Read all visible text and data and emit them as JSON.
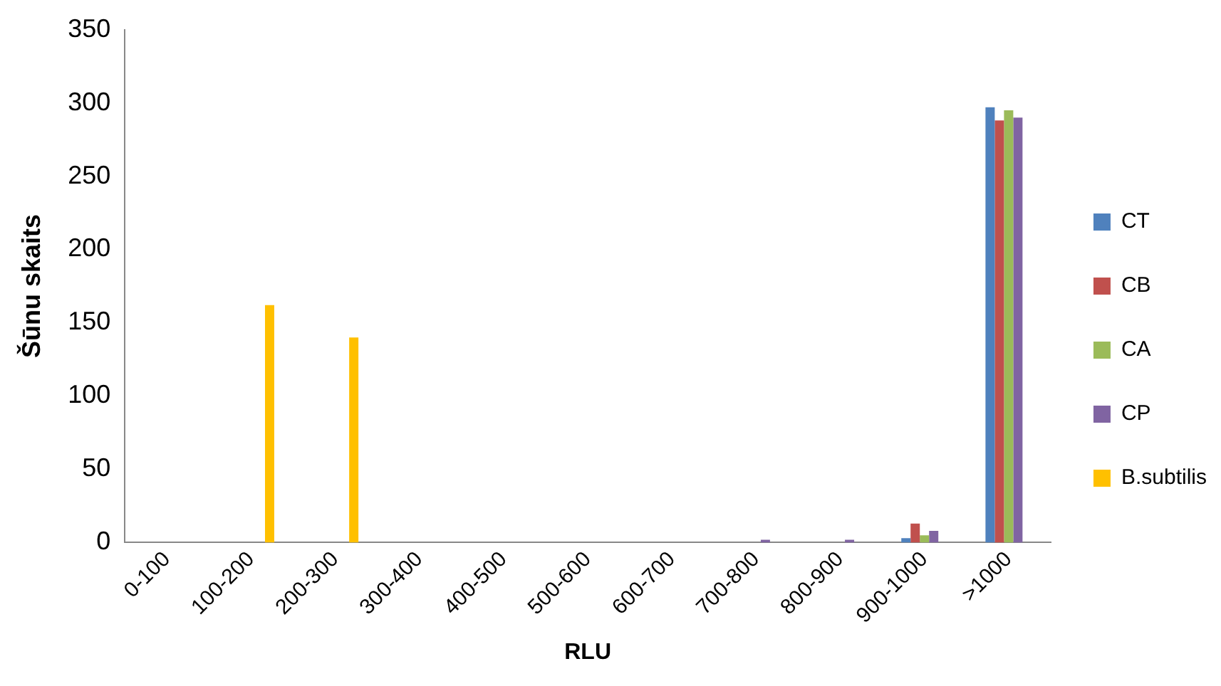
{
  "chart_data": {
    "type": "bar",
    "xlabel": "RLU",
    "ylabel": "Šūnu skaits",
    "categories": [
      "0-100",
      "100-200",
      "200-300",
      "300-400",
      "400-500",
      "500-600",
      "600-700",
      "700-800",
      "800-900",
      "900-1000",
      ">1000"
    ],
    "series": [
      {
        "name": "CT",
        "color": "#4f81bd",
        "values": [
          0,
          0,
          0,
          0,
          0,
          0,
          0,
          0,
          0,
          3,
          297
        ]
      },
      {
        "name": "CB",
        "color": "#c0504d",
        "values": [
          0,
          0,
          0,
          0,
          0,
          0,
          0,
          0,
          0,
          13,
          288
        ]
      },
      {
        "name": "CA",
        "color": "#9bbb59",
        "values": [
          0,
          0,
          0,
          0,
          0,
          0,
          0,
          0,
          0,
          5,
          295
        ]
      },
      {
        "name": "CP",
        "color": "#8064a2",
        "values": [
          0,
          0,
          0,
          0,
          0,
          0,
          0,
          2,
          2,
          8,
          290
        ]
      },
      {
        "name": "B.subtilis",
        "color": "#ffc000",
        "values": [
          0,
          162,
          140,
          0,
          0,
          0,
          0,
          0,
          0,
          0,
          0
        ]
      }
    ],
    "ylim": [
      0,
      350
    ],
    "yticks": [
      0,
      50,
      100,
      150,
      200,
      250,
      300,
      350
    ],
    "grid": false,
    "legend": "right"
  }
}
